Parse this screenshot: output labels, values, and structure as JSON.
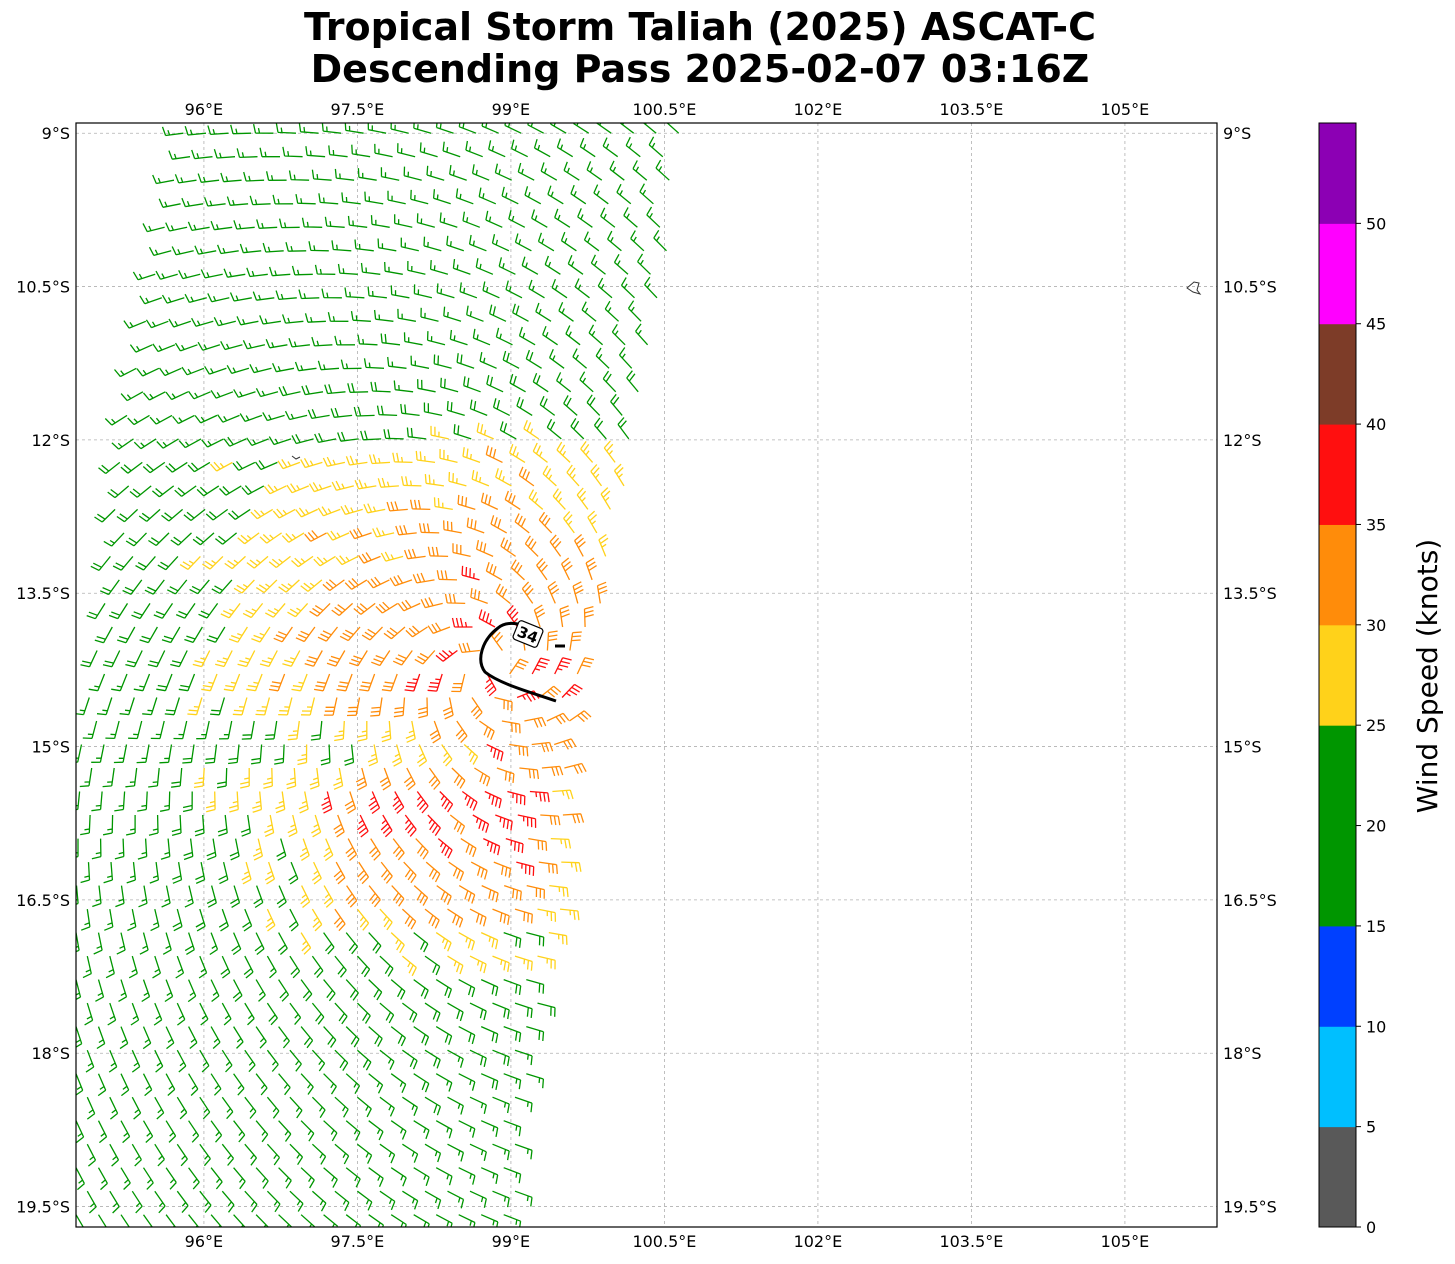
{
  "chart_data": {
    "type": "wind-barb-map",
    "title": "Tropical Storm Taliah (2025) ASCAT-C",
    "subtitle": "Descending Pass 2025-02-07 03:16Z",
    "lon_range": [
      94.75,
      105.9
    ],
    "lat_range": [
      -19.7,
      -8.9
    ],
    "lon_ticks": [
      96,
      97.5,
      99,
      100.5,
      102,
      103.5,
      105
    ],
    "lon_tick_labels": [
      "96°E",
      "97.5°E",
      "99°E",
      "100.5°E",
      "102°E",
      "103.5°E",
      "105°E"
    ],
    "lat_ticks": [
      -9,
      -10.5,
      -12,
      -13.5,
      -15,
      -16.5,
      -18,
      -19.5
    ],
    "lat_tick_labels": [
      "9°S",
      "10.5°S",
      "12°S",
      "13.5°S",
      "15°S",
      "16.5°S",
      "18°S",
      "19.5°S"
    ],
    "grid": true,
    "contour_label": "34",
    "colorbar": {
      "label": "Wind Speed (knots)",
      "bounds": [
        0,
        5,
        10,
        15,
        20,
        25,
        30,
        35,
        40,
        45,
        50,
        55
      ],
      "tick_labels": [
        "0",
        "5",
        "10",
        "15",
        "20",
        "25",
        "30",
        "35",
        "40",
        "45",
        "50"
      ],
      "colors": [
        "#595959",
        "#00bfff",
        "#0040ff",
        "#009600",
        "#009600",
        "#ffd21a",
        "#ff8c0a",
        "#ff0f0f",
        "#7d3c28",
        "#ff00ff",
        "#8c00b4",
        "#2d005a"
      ]
    },
    "storm_center": {
      "lon": 98.8,
      "lat": -14.25
    },
    "swath": [
      {
        "lat": -9.0,
        "lon_min": 95.8,
        "lon_max": 100.7
      },
      {
        "lat": -10.5,
        "lon_min": 95.5,
        "lon_max": 100.5
      },
      {
        "lat": -12.0,
        "lon_min": 95.2,
        "lon_max": 100.2
      },
      {
        "lat": -13.5,
        "lon_min": 95.05,
        "lon_max": 99.9
      },
      {
        "lat": -15.0,
        "lon_min": 94.8,
        "lon_max": 99.6
      },
      {
        "lat": -16.5,
        "lon_min": 94.75,
        "lon_max": 99.5
      },
      {
        "lat": -18.0,
        "lon_min": 94.75,
        "lon_max": 99.2
      },
      {
        "lat": -19.7,
        "lon_min": 94.75,
        "lon_max": 99.0
      }
    ]
  }
}
